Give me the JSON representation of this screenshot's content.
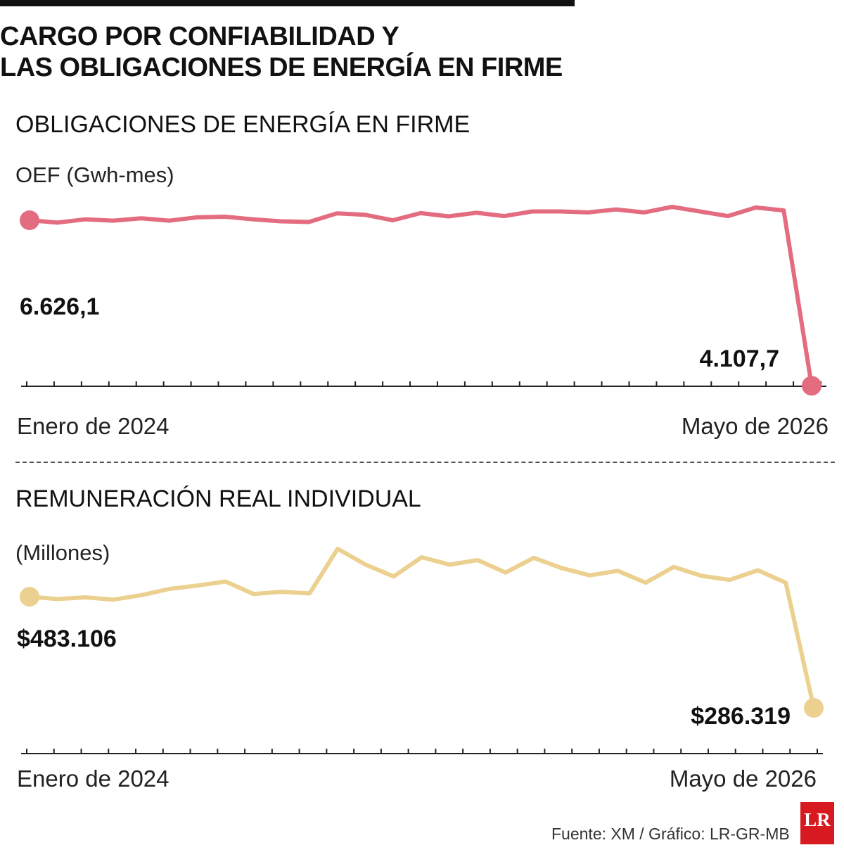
{
  "header": {
    "title_line1": "CARGO POR CONFIABILIDAD Y",
    "title_line2": "LAS OBLIGACIONES DE ENERGÍA EN FIRME"
  },
  "chart_data": [
    {
      "type": "line",
      "title": "OBLIGACIONES DE ENERGÍA EN FIRME",
      "ylabel": "OEF (Gwh-mes)",
      "x_start_label": "Enero de 2024",
      "x_end_label": "Mayo de 2026",
      "x": [
        "2024-01",
        "2024-02",
        "2024-03",
        "2024-04",
        "2024-05",
        "2024-06",
        "2024-07",
        "2024-08",
        "2024-09",
        "2024-10",
        "2024-11",
        "2024-12",
        "2025-01",
        "2025-02",
        "2025-03",
        "2025-04",
        "2025-05",
        "2025-06",
        "2025-07",
        "2025-08",
        "2025-09",
        "2025-10",
        "2025-11",
        "2025-12",
        "2026-01",
        "2026-02",
        "2026-03",
        "2026-04",
        "2026-05"
      ],
      "values": [
        6626.1,
        6590,
        6640,
        6620,
        6655,
        6620,
        6670,
        6680,
        6640,
        6610,
        6600,
        6730,
        6710,
        6625,
        6735,
        6685,
        6740,
        6690,
        6760,
        6760,
        6745,
        6790,
        6745,
        6830,
        6760,
        6690,
        6820,
        6775,
        4107.7
      ],
      "start_value_label": "6.626,1",
      "end_value_label": "4.107,7",
      "color": "#e46c80",
      "ylim": [
        4100,
        6830
      ]
    },
    {
      "type": "line",
      "title": "REMUNERACIÓN REAL INDIVIDUAL",
      "ylabel": "(Millones)",
      "x_start_label": "Enero de 2024",
      "x_end_label": "Mayo de 2026",
      "x": [
        "2024-01",
        "2024-02",
        "2024-03",
        "2024-04",
        "2024-05",
        "2024-06",
        "2024-07",
        "2024-08",
        "2024-09",
        "2024-10",
        "2024-11",
        "2024-12",
        "2025-01",
        "2025-02",
        "2025-03",
        "2025-04",
        "2025-05",
        "2025-06",
        "2025-07",
        "2025-08",
        "2025-09",
        "2025-10",
        "2025-11",
        "2025-12",
        "2026-01",
        "2026-02",
        "2026-03",
        "2026-04",
        "2026-05"
      ],
      "values": [
        483106,
        479000,
        482000,
        478000,
        486000,
        497000,
        503000,
        510000,
        488000,
        492000,
        489000,
        568000,
        540000,
        519000,
        553000,
        540000,
        548000,
        526000,
        552000,
        534000,
        521000,
        529000,
        508000,
        536000,
        520000,
        513000,
        530000,
        508000,
        286319
      ],
      "start_value_label": "$483.106",
      "end_value_label": "$286.319",
      "color": "#ecd08f",
      "ylim": [
        286319,
        568000
      ]
    }
  ],
  "footer": {
    "source": "Fuente: XM / Gráfico: LR-GR-MB",
    "logo": "LR"
  }
}
